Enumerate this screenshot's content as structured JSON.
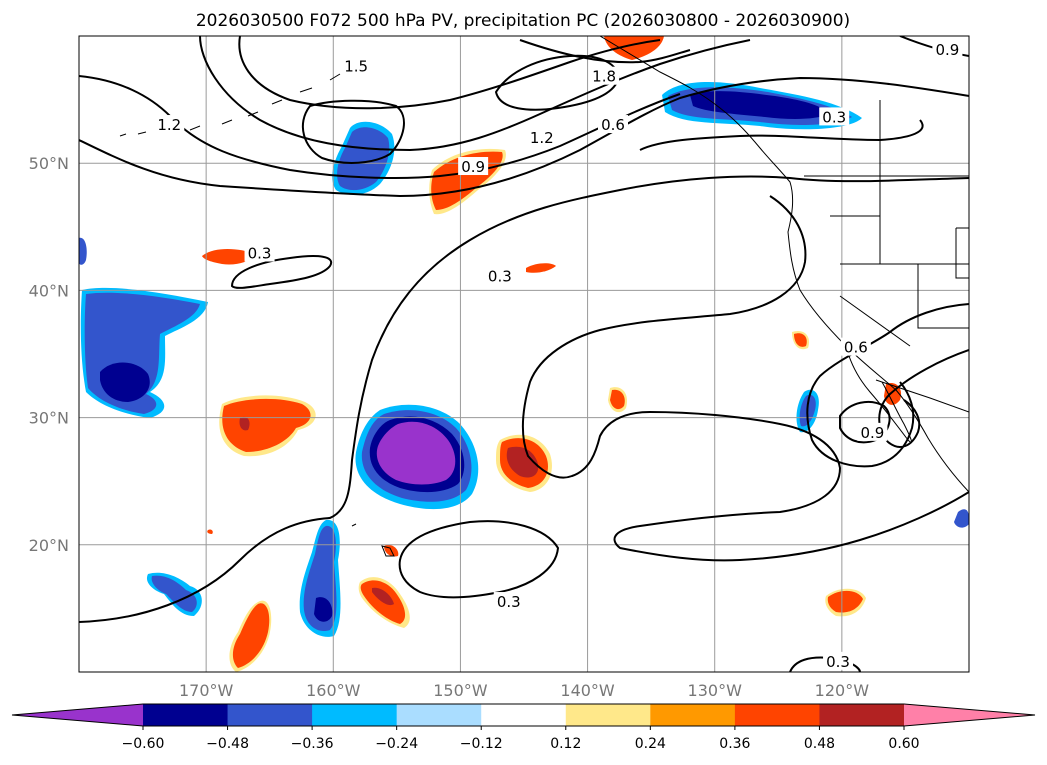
{
  "chart_data": {
    "type": "map-contour",
    "title": "2026030500 F072 500 hPa PV, precipitation PC (2026030800 - 2026030900)",
    "lon_range": [
      -180,
      -110
    ],
    "lat_range": [
      10,
      60
    ],
    "x_ticks": [
      {
        "lon": -170,
        "label": "170°W"
      },
      {
        "lon": -160,
        "label": "160°W"
      },
      {
        "lon": -150,
        "label": "150°W"
      },
      {
        "lon": -140,
        "label": "140°W"
      },
      {
        "lon": -130,
        "label": "130°W"
      },
      {
        "lon": -120,
        "label": "120°W"
      }
    ],
    "y_ticks": [
      {
        "lat": 20,
        "label": "20°N"
      },
      {
        "lat": 30,
        "label": "30°N"
      },
      {
        "lat": 40,
        "label": "40°N"
      },
      {
        "lat": 50,
        "label": "50°N"
      }
    ],
    "grid": true,
    "colorbar": {
      "orientation": "horizontal",
      "extend": "both",
      "levels": [
        -0.6,
        -0.48,
        -0.36,
        -0.24,
        -0.12,
        0.12,
        0.24,
        0.36,
        0.48,
        0.6
      ],
      "tick_labels": [
        "−0.60",
        "−0.48",
        "−0.36",
        "−0.24",
        "−0.12",
        "0.12",
        "0.24",
        "0.36",
        "0.48",
        "0.60"
      ],
      "colors": [
        "#9933cc",
        "#000090",
        "#3355cc",
        "#00bbff",
        "#aaddff",
        "#ffffff",
        "#ffe88a",
        "#ff9900",
        "#ff4400",
        "#b22222",
        "#ff80a8"
      ]
    },
    "pv_contour_labels": [
      {
        "text": "0.3",
        "lon": -165.8,
        "lat": 42.9
      },
      {
        "text": "0.3",
        "lon": -146.9,
        "lat": 41.1
      },
      {
        "text": "0.3",
        "lon": -120.6,
        "lat": 53.6
      },
      {
        "text": "0.3",
        "lon": -146.2,
        "lat": 15.5
      },
      {
        "text": "0.3",
        "lon": -120.3,
        "lat": 10.8
      },
      {
        "text": "0.6",
        "lon": -138.0,
        "lat": 53.0
      },
      {
        "text": "0.6",
        "lon": -118.9,
        "lat": 35.5
      },
      {
        "text": "0.9",
        "lon": -149.0,
        "lat": 49.7
      },
      {
        "text": "0.9",
        "lon": -117.6,
        "lat": 28.8
      },
      {
        "text": "1.2",
        "lon": -143.6,
        "lat": 52.0
      },
      {
        "text": "1.2",
        "lon": -172.9,
        "lat": 53.0
      },
      {
        "text": "1.8",
        "lon": -138.7,
        "lat": 56.8
      },
      {
        "text": "1.5",
        "lon": -158.2,
        "lat": 57.6
      },
      {
        "text": "0.9",
        "lon": -111.7,
        "lat": 58.9
      }
    ],
    "precip_regions": [
      {
        "name": "gulf-alaska-negative",
        "level": -0.36,
        "lon": -127.5,
        "lat": 54.2
      },
      {
        "name": "north-pacific-negative",
        "level": -0.36,
        "lon": -158.4,
        "lat": 50.6
      },
      {
        "name": "west-pacific-negative",
        "level": -0.36,
        "lon": -173.5,
        "lat": 34.5
      },
      {
        "name": "central-pacific-negative",
        "level": -0.6,
        "lon": -152.5,
        "lat": 28.2
      },
      {
        "name": "hawaii-negative",
        "level": -0.48,
        "lon": -160.8,
        "lat": 17.0
      },
      {
        "name": "south-pacific-negative-small",
        "level": -0.36,
        "lon": -172.0,
        "lat": 14.8
      },
      {
        "name": "baja-negative",
        "level": -0.36,
        "lon": -121.4,
        "lat": 30.5
      },
      {
        "name": "north-pacific-positive",
        "level": 0.36,
        "lon": -150.4,
        "lat": 48.8
      },
      {
        "name": "alaska-positive",
        "level": 0.36,
        "lon": -135.5,
        "lat": 59.5
      },
      {
        "name": "west-pacific-positive",
        "level": 0.48,
        "lon": -165.5,
        "lat": 29.6
      },
      {
        "name": "east-pacific-positive",
        "level": 0.48,
        "lon": -145.2,
        "lat": 26.7
      },
      {
        "name": "hawaii-south-positive",
        "level": 0.48,
        "lon": -156.2,
        "lat": 14.2
      },
      {
        "name": "south-pacific-positive",
        "level": 0.36,
        "lon": -166.2,
        "lat": 10.6
      },
      {
        "name": "mexico-positive",
        "level": 0.36,
        "lon": -120.0,
        "lat": 15.4
      },
      {
        "name": "california-positive",
        "level": 0.36,
        "lon": -117.0,
        "lat": 31.6
      }
    ]
  }
}
